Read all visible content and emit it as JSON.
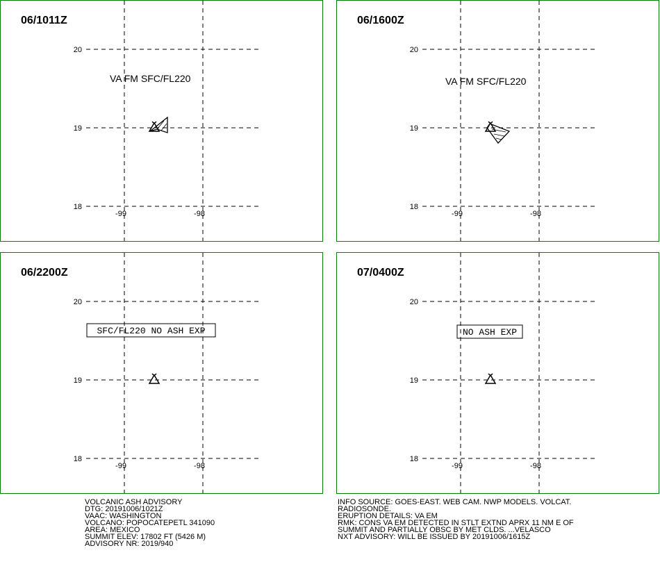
{
  "panels": [
    {
      "time": "06/1011Z",
      "label": "VA FM SFC/FL220",
      "lat_ticks": [
        "20",
        "19",
        "18"
      ],
      "lon_ticks": [
        "-99",
        "-98"
      ]
    },
    {
      "time": "06/1600Z",
      "label": "VA FM SFC/FL220",
      "lat_ticks": [
        "20",
        "19",
        "18"
      ],
      "lon_ticks": [
        "-99",
        "-98"
      ]
    },
    {
      "time": "06/2200Z",
      "label": "SFC/FL220 NO ASH EXP",
      "lat_ticks": [
        "20",
        "19",
        "18"
      ],
      "lon_ticks": [
        "-99",
        "-98"
      ]
    },
    {
      "time": "07/0400Z",
      "label": "NO ASH EXP",
      "lat_ticks": [
        "20",
        "19",
        "18"
      ],
      "lon_ticks": [
        "-99",
        "-98"
      ]
    }
  ],
  "advisory_left": [
    "VOLCANIC ASH ADVISORY",
    "DTG: 20191006/1021Z",
    "VAAC: WASHINGTON",
    "VOLCANO: POPOCATEPETL 341090",
    "AREA: MEXICO",
    "SUMMIT ELEV: 17802 FT (5426 M)",
    "ADVISORY NR: 2019/940"
  ],
  "advisory_right": [
    "INFO SOURCE: GOES-EAST. WEB CAM. NWP MODELS. VOLCAT.",
    "RADIOSONDE.",
    "ERUPTION DETAILS: VA EM",
    "RMK: CONS VA EM DETECTED IN STLT EXTND APRX 11 NM E OF",
    "SUMMIT AND PARTIALLY OBSC BY MET CLDS. ...VELASCO",
    "NXT ADVISORY: WILL BE ISSUED BY 20191006/1615Z"
  ]
}
